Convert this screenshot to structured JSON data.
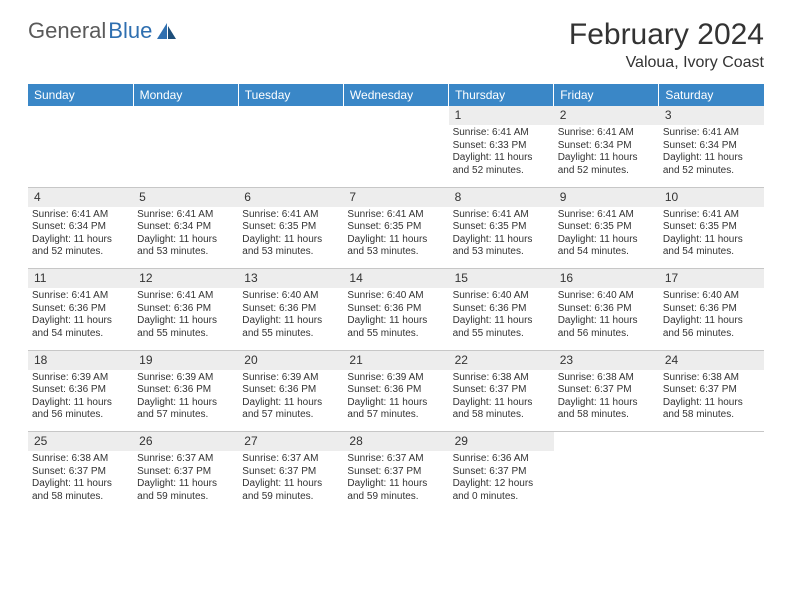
{
  "logo": {
    "text1": "General",
    "text2": "Blue"
  },
  "header": {
    "month": "February 2024",
    "location": "Valoua, Ivory Coast"
  },
  "colors": {
    "header_bg": "#3a87c7",
    "header_text": "#ffffff",
    "daynum_bg": "#ededed",
    "border": "#c7c7c7",
    "logo_gray": "#5a5a5a",
    "logo_blue": "#2f6fb0"
  },
  "weekdays": [
    "Sunday",
    "Monday",
    "Tuesday",
    "Wednesday",
    "Thursday",
    "Friday",
    "Saturday"
  ],
  "weeks": [
    {
      "days": [
        null,
        null,
        null,
        null,
        {
          "n": "1",
          "sunrise": "Sunrise: 6:41 AM",
          "sunset": "Sunset: 6:33 PM",
          "daylight1": "Daylight: 11 hours",
          "daylight2": "and 52 minutes."
        },
        {
          "n": "2",
          "sunrise": "Sunrise: 6:41 AM",
          "sunset": "Sunset: 6:34 PM",
          "daylight1": "Daylight: 11 hours",
          "daylight2": "and 52 minutes."
        },
        {
          "n": "3",
          "sunrise": "Sunrise: 6:41 AM",
          "sunset": "Sunset: 6:34 PM",
          "daylight1": "Daylight: 11 hours",
          "daylight2": "and 52 minutes."
        }
      ]
    },
    {
      "days": [
        {
          "n": "4",
          "sunrise": "Sunrise: 6:41 AM",
          "sunset": "Sunset: 6:34 PM",
          "daylight1": "Daylight: 11 hours",
          "daylight2": "and 52 minutes."
        },
        {
          "n": "5",
          "sunrise": "Sunrise: 6:41 AM",
          "sunset": "Sunset: 6:34 PM",
          "daylight1": "Daylight: 11 hours",
          "daylight2": "and 53 minutes."
        },
        {
          "n": "6",
          "sunrise": "Sunrise: 6:41 AM",
          "sunset": "Sunset: 6:35 PM",
          "daylight1": "Daylight: 11 hours",
          "daylight2": "and 53 minutes."
        },
        {
          "n": "7",
          "sunrise": "Sunrise: 6:41 AM",
          "sunset": "Sunset: 6:35 PM",
          "daylight1": "Daylight: 11 hours",
          "daylight2": "and 53 minutes."
        },
        {
          "n": "8",
          "sunrise": "Sunrise: 6:41 AM",
          "sunset": "Sunset: 6:35 PM",
          "daylight1": "Daylight: 11 hours",
          "daylight2": "and 53 minutes."
        },
        {
          "n": "9",
          "sunrise": "Sunrise: 6:41 AM",
          "sunset": "Sunset: 6:35 PM",
          "daylight1": "Daylight: 11 hours",
          "daylight2": "and 54 minutes."
        },
        {
          "n": "10",
          "sunrise": "Sunrise: 6:41 AM",
          "sunset": "Sunset: 6:35 PM",
          "daylight1": "Daylight: 11 hours",
          "daylight2": "and 54 minutes."
        }
      ]
    },
    {
      "days": [
        {
          "n": "11",
          "sunrise": "Sunrise: 6:41 AM",
          "sunset": "Sunset: 6:36 PM",
          "daylight1": "Daylight: 11 hours",
          "daylight2": "and 54 minutes."
        },
        {
          "n": "12",
          "sunrise": "Sunrise: 6:41 AM",
          "sunset": "Sunset: 6:36 PM",
          "daylight1": "Daylight: 11 hours",
          "daylight2": "and 55 minutes."
        },
        {
          "n": "13",
          "sunrise": "Sunrise: 6:40 AM",
          "sunset": "Sunset: 6:36 PM",
          "daylight1": "Daylight: 11 hours",
          "daylight2": "and 55 minutes."
        },
        {
          "n": "14",
          "sunrise": "Sunrise: 6:40 AM",
          "sunset": "Sunset: 6:36 PM",
          "daylight1": "Daylight: 11 hours",
          "daylight2": "and 55 minutes."
        },
        {
          "n": "15",
          "sunrise": "Sunrise: 6:40 AM",
          "sunset": "Sunset: 6:36 PM",
          "daylight1": "Daylight: 11 hours",
          "daylight2": "and 55 minutes."
        },
        {
          "n": "16",
          "sunrise": "Sunrise: 6:40 AM",
          "sunset": "Sunset: 6:36 PM",
          "daylight1": "Daylight: 11 hours",
          "daylight2": "and 56 minutes."
        },
        {
          "n": "17",
          "sunrise": "Sunrise: 6:40 AM",
          "sunset": "Sunset: 6:36 PM",
          "daylight1": "Daylight: 11 hours",
          "daylight2": "and 56 minutes."
        }
      ]
    },
    {
      "days": [
        {
          "n": "18",
          "sunrise": "Sunrise: 6:39 AM",
          "sunset": "Sunset: 6:36 PM",
          "daylight1": "Daylight: 11 hours",
          "daylight2": "and 56 minutes."
        },
        {
          "n": "19",
          "sunrise": "Sunrise: 6:39 AM",
          "sunset": "Sunset: 6:36 PM",
          "daylight1": "Daylight: 11 hours",
          "daylight2": "and 57 minutes."
        },
        {
          "n": "20",
          "sunrise": "Sunrise: 6:39 AM",
          "sunset": "Sunset: 6:36 PM",
          "daylight1": "Daylight: 11 hours",
          "daylight2": "and 57 minutes."
        },
        {
          "n": "21",
          "sunrise": "Sunrise: 6:39 AM",
          "sunset": "Sunset: 6:36 PM",
          "daylight1": "Daylight: 11 hours",
          "daylight2": "and 57 minutes."
        },
        {
          "n": "22",
          "sunrise": "Sunrise: 6:38 AM",
          "sunset": "Sunset: 6:37 PM",
          "daylight1": "Daylight: 11 hours",
          "daylight2": "and 58 minutes."
        },
        {
          "n": "23",
          "sunrise": "Sunrise: 6:38 AM",
          "sunset": "Sunset: 6:37 PM",
          "daylight1": "Daylight: 11 hours",
          "daylight2": "and 58 minutes."
        },
        {
          "n": "24",
          "sunrise": "Sunrise: 6:38 AM",
          "sunset": "Sunset: 6:37 PM",
          "daylight1": "Daylight: 11 hours",
          "daylight2": "and 58 minutes."
        }
      ]
    },
    {
      "days": [
        {
          "n": "25",
          "sunrise": "Sunrise: 6:38 AM",
          "sunset": "Sunset: 6:37 PM",
          "daylight1": "Daylight: 11 hours",
          "daylight2": "and 58 minutes."
        },
        {
          "n": "26",
          "sunrise": "Sunrise: 6:37 AM",
          "sunset": "Sunset: 6:37 PM",
          "daylight1": "Daylight: 11 hours",
          "daylight2": "and 59 minutes."
        },
        {
          "n": "27",
          "sunrise": "Sunrise: 6:37 AM",
          "sunset": "Sunset: 6:37 PM",
          "daylight1": "Daylight: 11 hours",
          "daylight2": "and 59 minutes."
        },
        {
          "n": "28",
          "sunrise": "Sunrise: 6:37 AM",
          "sunset": "Sunset: 6:37 PM",
          "daylight1": "Daylight: 11 hours",
          "daylight2": "and 59 minutes."
        },
        {
          "n": "29",
          "sunrise": "Sunrise: 6:36 AM",
          "sunset": "Sunset: 6:37 PM",
          "daylight1": "Daylight: 12 hours",
          "daylight2": "and 0 minutes."
        },
        null,
        null
      ]
    }
  ]
}
